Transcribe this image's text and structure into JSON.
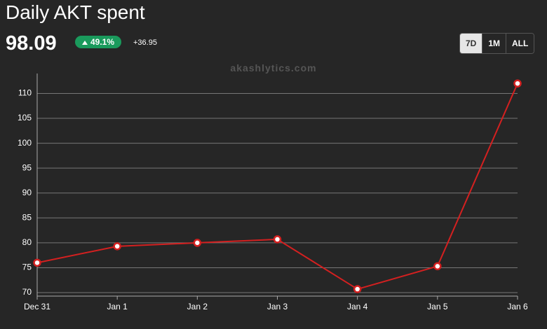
{
  "header": {
    "title": "Daily AKT spent",
    "value": 98.09,
    "change_percent": "49.1%",
    "change_abs": "+36.95",
    "buttons": [
      "7D",
      "1M",
      "ALL"
    ],
    "watermark": "akashlytics.com"
  },
  "chart_data": {
    "type": "line",
    "categories": [
      "Dec 31",
      "Jan 1",
      "Jan 2",
      "Jan 3",
      "Jan 4",
      "Jan 5",
      "Jan 6"
    ],
    "series": [
      {
        "name": "AKT spent",
        "color": "#d42020",
        "values": [
          76,
          79.3,
          80,
          80.7,
          70.7,
          75.3,
          112
        ]
      }
    ],
    "ylim": [
      69.3,
      114
    ],
    "yticks": [
      70,
      75,
      80,
      85,
      90,
      95,
      100,
      105,
      110
    ],
    "grid": true
  }
}
